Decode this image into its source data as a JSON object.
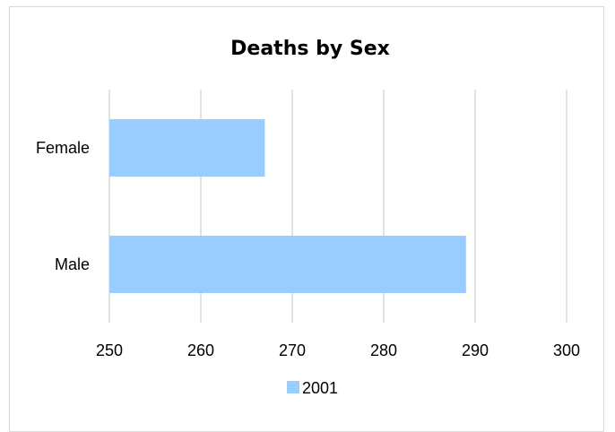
{
  "chart_data": {
    "type": "bar",
    "orientation": "horizontal",
    "title": "Deaths by Sex",
    "xlabel": "",
    "ylabel": "",
    "categories": [
      "Female",
      "Male"
    ],
    "series": [
      {
        "name": "2001",
        "values": [
          267,
          289
        ],
        "color": "#99ccff"
      }
    ],
    "xlim": [
      250,
      300
    ],
    "xticks": [
      "250",
      "260",
      "270",
      "280",
      "290",
      "300"
    ],
    "grid": true,
    "legend": "bottom"
  }
}
